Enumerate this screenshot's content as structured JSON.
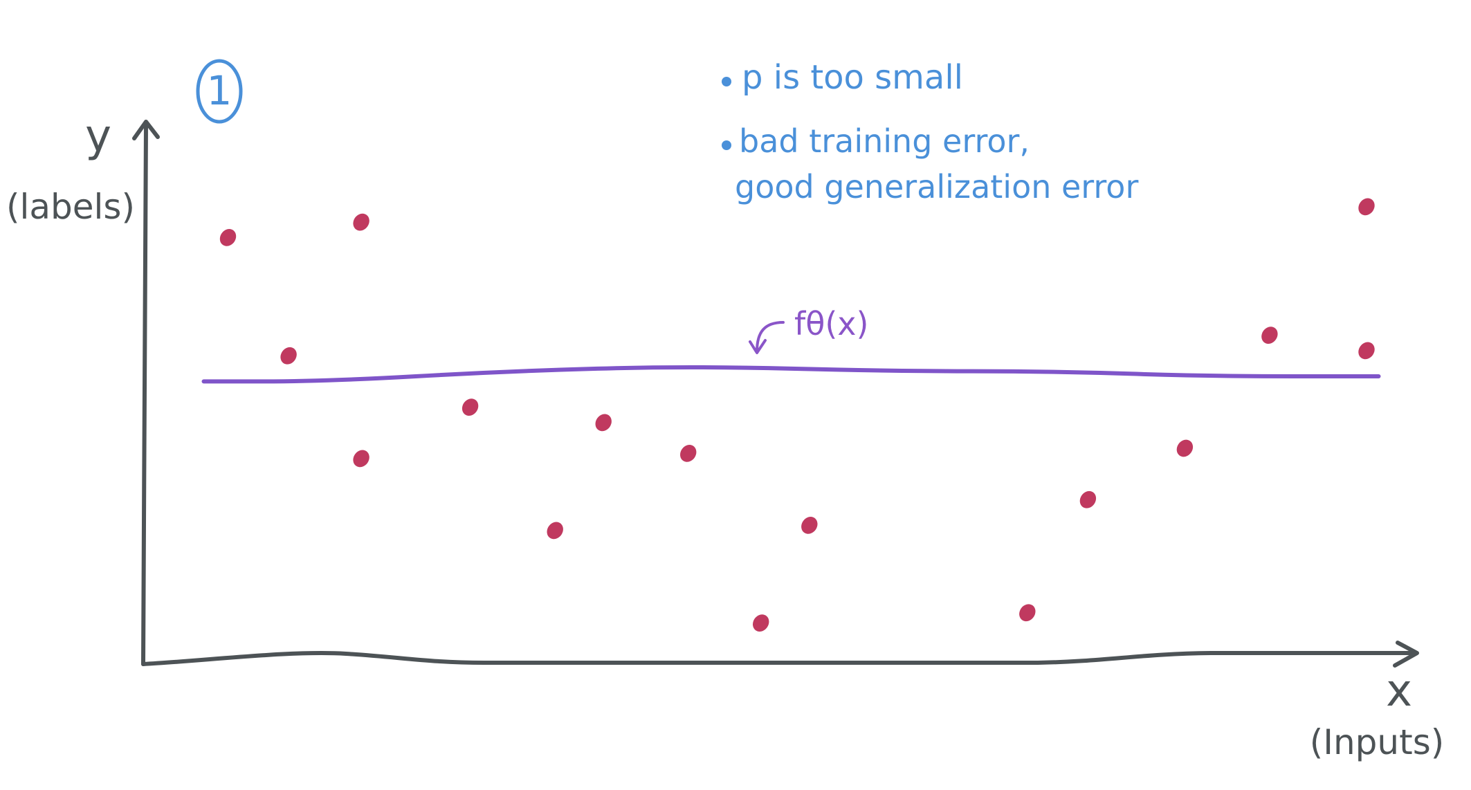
{
  "marker": "1",
  "notes": [
    "p is too small",
    "bad training error,",
    "good generalization error"
  ],
  "y_axis": {
    "symbol": "y",
    "caption": "(labels)"
  },
  "x_axis": {
    "symbol": "x",
    "caption": "(Inputs)"
  },
  "fit_label": "fθ(x)",
  "colors": {
    "axes": "#4d5356",
    "points": "#c0395f",
    "fit_line": "#7f55c9",
    "annotations": "#4a90d9"
  },
  "chart_data": {
    "type": "scatter",
    "points": [
      {
        "x": 0.07,
        "y": 0.83
      },
      {
        "x": 0.12,
        "y": 0.6
      },
      {
        "x": 0.18,
        "y": 0.86
      },
      {
        "x": 0.18,
        "y": 0.4
      },
      {
        "x": 0.27,
        "y": 0.5
      },
      {
        "x": 0.34,
        "y": 0.26
      },
      {
        "x": 0.38,
        "y": 0.47
      },
      {
        "x": 0.45,
        "y": 0.41
      },
      {
        "x": 0.51,
        "y": 0.08
      },
      {
        "x": 0.55,
        "y": 0.27
      },
      {
        "x": 0.73,
        "y": 0.1
      },
      {
        "x": 0.78,
        "y": 0.32
      },
      {
        "x": 0.86,
        "y": 0.42
      },
      {
        "x": 0.93,
        "y": 0.64
      },
      {
        "x": 1.01,
        "y": 0.89
      },
      {
        "x": 1.01,
        "y": 0.61
      }
    ],
    "fit_line": [
      {
        "x": 0.05,
        "y": 0.55
      },
      {
        "x": 0.15,
        "y": 0.55
      },
      {
        "x": 0.3,
        "y": 0.57
      },
      {
        "x": 0.45,
        "y": 0.58
      },
      {
        "x": 0.62,
        "y": 0.57
      },
      {
        "x": 0.75,
        "y": 0.57
      },
      {
        "x": 0.88,
        "y": 0.56
      },
      {
        "x": 1.02,
        "y": 0.56
      }
    ],
    "xlim": [
      0,
      1.05
    ],
    "ylim": [
      0,
      1.05
    ]
  }
}
